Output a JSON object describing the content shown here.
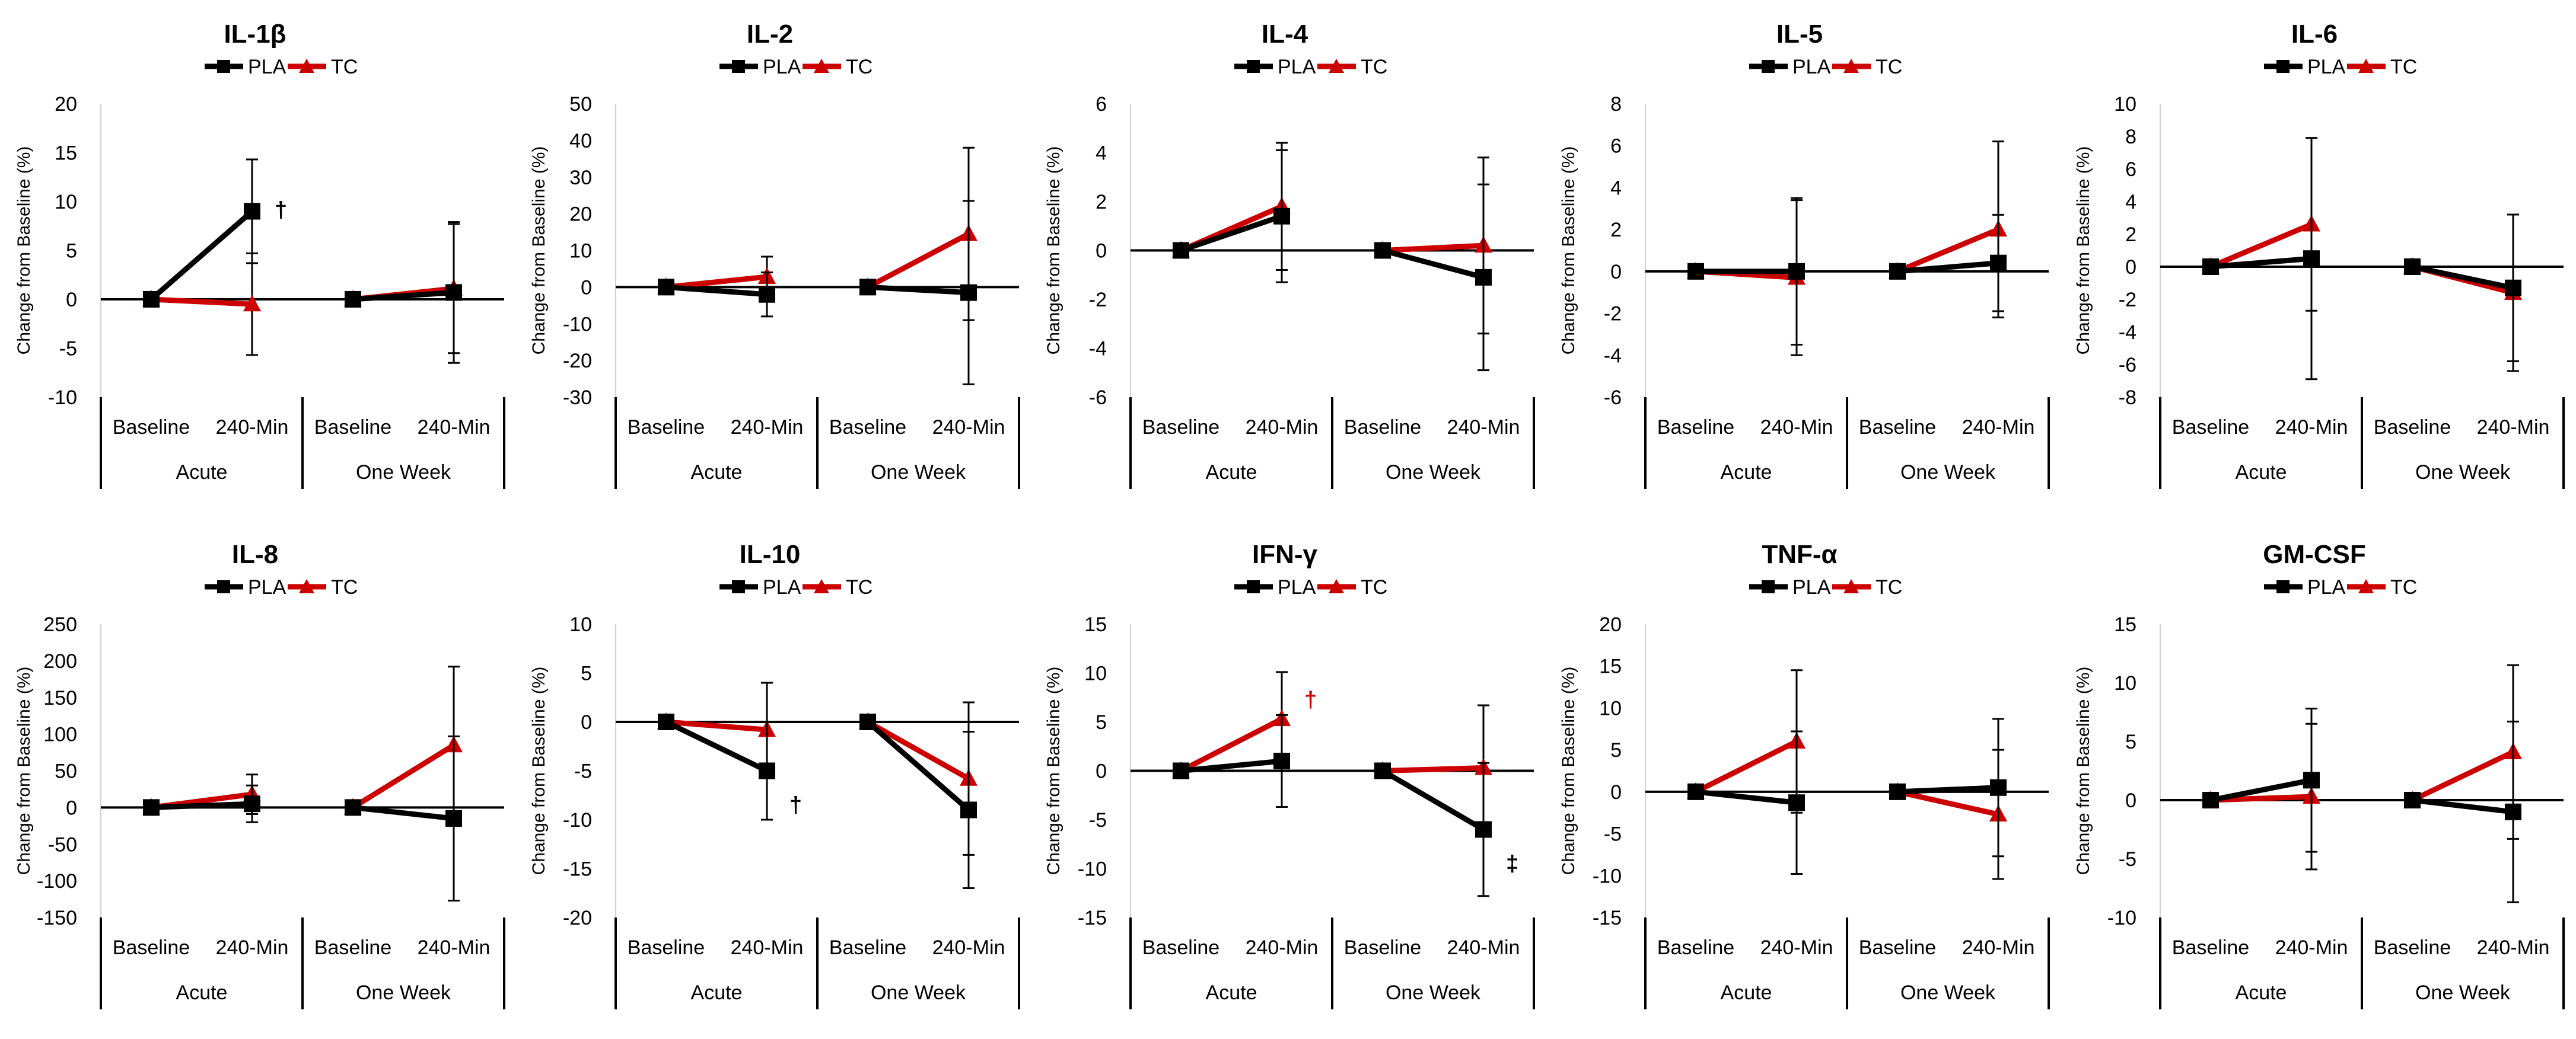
{
  "legend_labels": [
    "PLA",
    "TC"
  ],
  "colors": {
    "pla": "#000000",
    "tc": "#cc0000"
  },
  "chart_data": [
    {
      "type": "line",
      "title": "IL-1β",
      "ylabel": "Change from Baseline (%)",
      "ylim": [
        -10,
        20
      ],
      "yticks": [
        20,
        15,
        10,
        5,
        0,
        -5,
        -10
      ],
      "categories": [
        "Baseline",
        "240-Min",
        "Baseline",
        "240-Min"
      ],
      "groups": [
        "Acute",
        "One Week"
      ],
      "series": [
        {
          "name": "PLA",
          "values": [
            0,
            9,
            0,
            0.7
          ],
          "err": [
            0,
            5.3,
            0,
            7.2
          ]
        },
        {
          "name": "TC",
          "values": [
            0,
            -0.5,
            0,
            1.1
          ],
          "err": [
            0,
            5.2,
            0,
            6.6
          ]
        }
      ],
      "annotations": [
        {
          "text": "†",
          "point": 1,
          "series": "PLA"
        }
      ]
    },
    {
      "type": "line",
      "title": "IL-2",
      "ylabel": "Change from Baseline (%)",
      "ylim": [
        -30,
        50
      ],
      "yticks": [
        50,
        40,
        30,
        20,
        10,
        0,
        -10,
        -20,
        -30
      ],
      "categories": [
        "Baseline",
        "240-Min",
        "Baseline",
        "240-Min"
      ],
      "groups": [
        "Acute",
        "One Week"
      ],
      "series": [
        {
          "name": "PLA",
          "values": [
            0,
            -2,
            0,
            -1.5
          ],
          "err": [
            0,
            6,
            0,
            25
          ]
        },
        {
          "name": "TC",
          "values": [
            0,
            2.8,
            0,
            14.5
          ],
          "err": [
            0,
            5.5,
            0,
            23.5
          ]
        }
      ],
      "annotations": []
    },
    {
      "type": "line",
      "title": "IL-4",
      "ylabel": "Change from Baseline (%)",
      "ylim": [
        -6,
        6
      ],
      "yticks": [
        6,
        4,
        2,
        0,
        -2,
        -4,
        -6
      ],
      "categories": [
        "Baseline",
        "240-Min",
        "Baseline",
        "240-Min"
      ],
      "groups": [
        "Acute",
        "One Week"
      ],
      "series": [
        {
          "name": "PLA",
          "values": [
            0,
            1.4,
            0,
            -1.1
          ],
          "err": [
            0,
            2.7,
            0,
            3.8
          ]
        },
        {
          "name": "TC",
          "values": [
            0,
            1.8,
            0,
            0.2
          ],
          "err": [
            0,
            2.6,
            0,
            3.6
          ]
        }
      ],
      "annotations": []
    },
    {
      "type": "line",
      "title": "IL-5",
      "ylabel": "Change from Baseline (%)",
      "ylim": [
        -6,
        8
      ],
      "yticks": [
        8,
        6,
        4,
        2,
        0,
        -2,
        -4,
        -6
      ],
      "categories": [
        "Baseline",
        "240-Min",
        "Baseline",
        "240-Min"
      ],
      "groups": [
        "Acute",
        "One Week"
      ],
      "series": [
        {
          "name": "PLA",
          "values": [
            0,
            0,
            0,
            0.4
          ],
          "err": [
            0,
            3.5,
            0,
            2.3
          ]
        },
        {
          "name": "TC",
          "values": [
            0,
            -0.3,
            0,
            2
          ],
          "err": [
            0,
            3.7,
            0,
            4.2
          ]
        }
      ],
      "annotations": []
    },
    {
      "type": "line",
      "title": "IL-6",
      "ylabel": "Change from Baseline (%)",
      "ylim": [
        -8,
        10
      ],
      "yticks": [
        10,
        8,
        6,
        4,
        2,
        0,
        -2,
        -4,
        -6,
        -8
      ],
      "categories": [
        "Baseline",
        "240-Min",
        "Baseline",
        "240-Min"
      ],
      "groups": [
        "Acute",
        "One Week"
      ],
      "series": [
        {
          "name": "PLA",
          "values": [
            0,
            0.5,
            0,
            -1.3
          ],
          "err": [
            0,
            7.4,
            0,
            4.5
          ]
        },
        {
          "name": "TC",
          "values": [
            0,
            2.6,
            0,
            -1.6
          ],
          "err": [
            0,
            5.3,
            0,
            4.8
          ]
        }
      ],
      "annotations": []
    },
    {
      "type": "line",
      "title": "IL-8",
      "ylabel": "Change from Baseline (%)",
      "ylim": [
        -150,
        250
      ],
      "yticks": [
        250,
        200,
        150,
        100,
        50,
        0,
        -50,
        -100,
        -150
      ],
      "categories": [
        "Baseline",
        "240-Min",
        "Baseline",
        "240-Min"
      ],
      "groups": [
        "Acute",
        "One Week"
      ],
      "series": [
        {
          "name": "PLA",
          "values": [
            0,
            5,
            0,
            -15
          ],
          "err": [
            0,
            25,
            0,
            112
          ]
        },
        {
          "name": "TC",
          "values": [
            0,
            18,
            0,
            85
          ],
          "err": [
            0,
            27,
            0,
            107
          ]
        }
      ],
      "annotations": []
    },
    {
      "type": "line",
      "title": "IL-10",
      "ylabel": "Change from Baseline (%)",
      "ylim": [
        -20,
        10
      ],
      "yticks": [
        10,
        5,
        0,
        -5,
        -10,
        -15,
        -20
      ],
      "categories": [
        "Baseline",
        "240-Min",
        "Baseline",
        "240-Min"
      ],
      "groups": [
        "Acute",
        "One Week"
      ],
      "series": [
        {
          "name": "PLA",
          "values": [
            0,
            -5,
            0,
            -9
          ],
          "err": [
            0,
            5,
            0,
            8
          ]
        },
        {
          "name": "TC",
          "values": [
            0,
            -0.8,
            0,
            -5.8
          ],
          "err": [
            0,
            4.8,
            0,
            7.8
          ]
        }
      ],
      "annotations": [
        {
          "text": "†",
          "point": 1,
          "series": "PLA"
        }
      ]
    },
    {
      "type": "line",
      "title": "IFN-γ",
      "ylabel": "Change from Baseline (%)",
      "ylim": [
        -15,
        15
      ],
      "yticks": [
        15,
        10,
        5,
        0,
        -5,
        -10,
        -15
      ],
      "categories": [
        "Baseline",
        "240-Min",
        "Baseline",
        "240-Min"
      ],
      "groups": [
        "Acute",
        "One Week"
      ],
      "series": [
        {
          "name": "PLA",
          "values": [
            0,
            1,
            0,
            -6
          ],
          "err": [
            0,
            4.7,
            0,
            6.8
          ]
        },
        {
          "name": "TC",
          "values": [
            0,
            5.3,
            0,
            0.3
          ],
          "err": [
            0,
            4.8,
            0,
            6.4
          ]
        }
      ],
      "annotations": [
        {
          "text": "†",
          "point": 1,
          "series": "TC"
        },
        {
          "text": "‡",
          "point": 3,
          "series": "PLA"
        }
      ]
    },
    {
      "type": "line",
      "title": "TNF-α",
      "ylabel": "Change from Baseline (%)",
      "ylim": [
        -15,
        20
      ],
      "yticks": [
        20,
        15,
        10,
        5,
        0,
        -5,
        -10,
        -15
      ],
      "categories": [
        "Baseline",
        "240-Min",
        "Baseline",
        "240-Min"
      ],
      "groups": [
        "Acute",
        "One Week"
      ],
      "series": [
        {
          "name": "PLA",
          "values": [
            0,
            -1.3,
            0,
            0.5
          ],
          "err": [
            0,
            8.5,
            0,
            8.2
          ]
        },
        {
          "name": "TC",
          "values": [
            0,
            6,
            0,
            -2.7
          ],
          "err": [
            0,
            8.5,
            0,
            7.7
          ]
        }
      ],
      "annotations": []
    },
    {
      "type": "line",
      "title": "GM-CSF",
      "ylabel": "Change from Baseline (%)",
      "ylim": [
        -10,
        15
      ],
      "yticks": [
        15,
        10,
        5,
        0,
        -5,
        -10
      ],
      "categories": [
        "Baseline",
        "240-Min",
        "Baseline",
        "240-Min"
      ],
      "groups": [
        "Acute",
        "One Week"
      ],
      "series": [
        {
          "name": "PLA",
          "values": [
            0,
            1.7,
            0,
            -1
          ],
          "err": [
            0,
            6.1,
            0,
            7.7
          ]
        },
        {
          "name": "TC",
          "values": [
            0,
            0.3,
            0,
            4.1
          ],
          "err": [
            0,
            6.2,
            0,
            7.4
          ]
        }
      ],
      "annotations": []
    }
  ]
}
